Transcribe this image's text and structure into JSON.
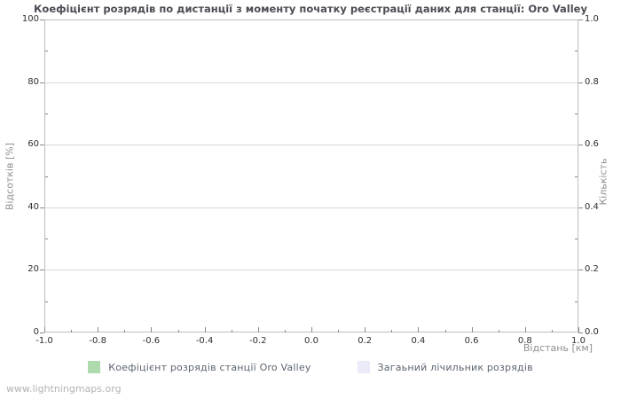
{
  "page": {
    "watermark": "www.lightningmaps.org"
  },
  "chart_data": {
    "type": "line",
    "title": "Коефіцієнт розрядів по дистанції з моменту початку реєстрації даних для станції: Oro Valley",
    "xlabel": "Відстань  [км]",
    "ylabel_left": "Відсотків  [%]",
    "ylabel_right": "Кількість",
    "xlim": [
      -1.0,
      1.0
    ],
    "ylim_left": [
      0,
      100
    ],
    "ylim_right": [
      0.0,
      1.0
    ],
    "x_ticks": [
      "-1.0",
      "-0.8",
      "-0.6",
      "-0.4",
      "-0.2",
      "0.0",
      "0.2",
      "0.4",
      "0.6",
      "0.8",
      "1.0"
    ],
    "y_ticks_left": [
      "0",
      "20",
      "40",
      "60",
      "80",
      "100"
    ],
    "y_ticks_right": [
      "0.0",
      "0.2",
      "0.4",
      "0.6",
      "0.8",
      "1.0"
    ],
    "grid": "horizontal-only",
    "legend_position": "bottom-center",
    "frame_color": "#bdbdbd",
    "grid_color": "#d8d8d8",
    "series": [
      {
        "name": "Коефіцієнт розрядів станції Oro Valley",
        "color": "#aedbae",
        "values": []
      },
      {
        "name": "Загаьний лічильник розрядів",
        "color": "#eaeaf8",
        "values": []
      }
    ]
  }
}
